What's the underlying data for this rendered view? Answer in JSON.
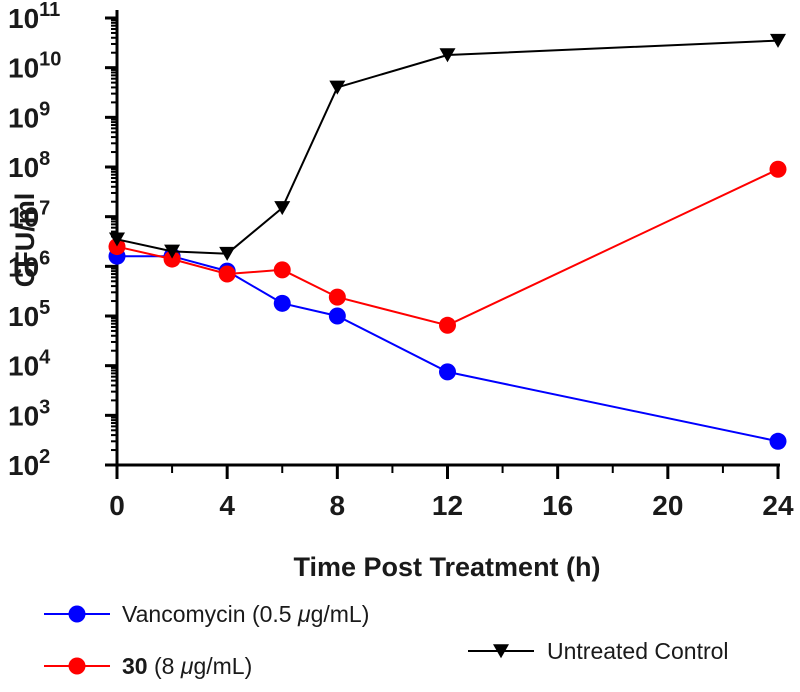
{
  "chart_data": {
    "type": "line",
    "title": "",
    "xlabel": "Time Post Treatment (h)",
    "ylabel": "CFU/ml",
    "yscale": "log10",
    "ylim_exponent": [
      2,
      11
    ],
    "x_ticks": [
      "0",
      "4",
      "8",
      "12",
      "16",
      "20",
      "24"
    ],
    "y_tick_base": "10",
    "y_tick_exponents": [
      "2",
      "3",
      "4",
      "5",
      "6",
      "7",
      "8",
      "9",
      "10",
      "11"
    ],
    "series": [
      {
        "name": "Vancomycin (0.5 μg/mL)",
        "label_parts": [
          "Vancomycin (0.5 ",
          "μ",
          "g/mL)"
        ],
        "color": "#0000ff",
        "marker": "circle",
        "x": [
          0,
          2,
          4,
          6,
          8,
          12,
          24
        ],
        "values": [
          1600000.0,
          1600000.0,
          800000.0,
          180000.0,
          100000.0,
          7500.0,
          300.0
        ]
      },
      {
        "name": "30 (8 μg/mL)",
        "label_parts": [
          "30",
          " (8 ",
          "μ",
          "g/mL)"
        ],
        "color": "#ff0000",
        "marker": "circle",
        "x": [
          0,
          2,
          4,
          6,
          8,
          12,
          24
        ],
        "values": [
          2500000.0,
          1400000.0,
          700000.0,
          850000.0,
          240000.0,
          65000.0,
          90000000.0
        ]
      },
      {
        "name": "Untreated Control",
        "label_parts": [
          "Untreated Control"
        ],
        "color": "#000000",
        "marker": "triangle-down",
        "x": [
          0,
          2,
          4,
          6,
          8,
          12,
          24
        ],
        "values": [
          3500000.0,
          2000000.0,
          1800000.0,
          15000000.0,
          4000000000.0,
          18000000000.0,
          35000000000.0
        ]
      }
    ],
    "grid": false,
    "legend_position": "bottom"
  }
}
